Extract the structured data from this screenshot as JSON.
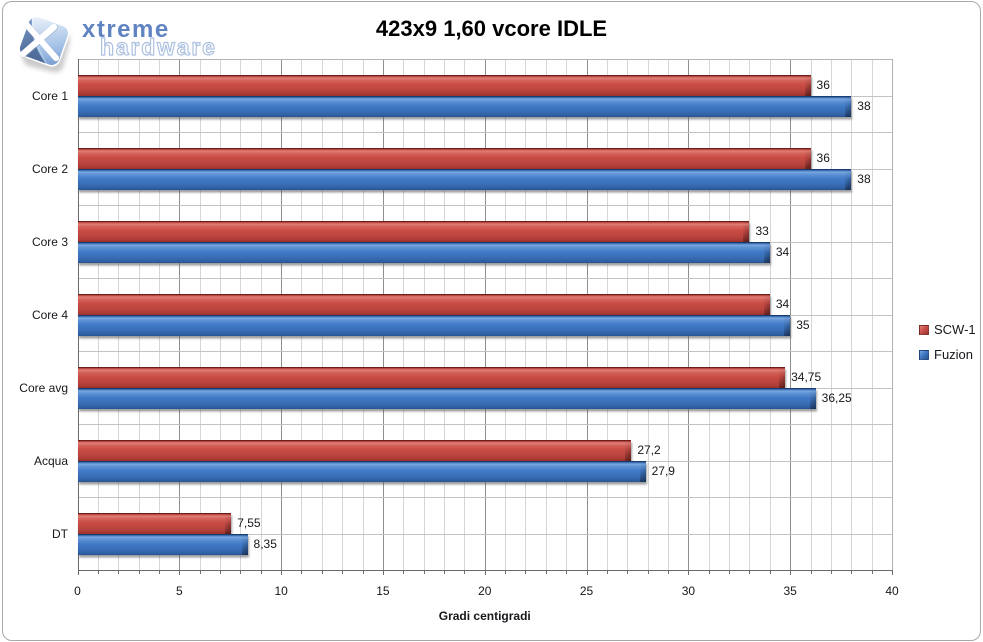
{
  "brand": {
    "line1": "xtreme",
    "line2": "hardware",
    "icon": "x-logo-icon"
  },
  "title": "423x9 1,60 vcore IDLE",
  "chart_data": {
    "type": "bar",
    "orientation": "horizontal",
    "title": "423x9 1,60 vcore IDLE",
    "categories": [
      "Core 1",
      "Core 2",
      "Core 3",
      "Core 4",
      "Core avg",
      "Acqua",
      "DT"
    ],
    "series": [
      {
        "name": "SCW-1",
        "color": "#c0504d",
        "values": [
          36,
          36,
          33,
          34,
          34.75,
          27.2,
          7.55
        ],
        "labels": [
          "36",
          "36",
          "33",
          "34",
          "34,75",
          "27,2",
          "7,55"
        ]
      },
      {
        "name": "Fuzion",
        "color": "#4f81bd",
        "values": [
          38,
          38,
          34,
          35,
          36.25,
          27.9,
          8.35
        ],
        "labels": [
          "38",
          "38",
          "34",
          "35",
          "36,25",
          "27,9",
          "8,35"
        ]
      }
    ],
    "xlabel": "Gradi centigradi",
    "ylabel": "",
    "xlim": [
      0,
      40
    ],
    "x_major_unit": 5,
    "x_minor_unit": 1,
    "x_tick_labels": [
      "0",
      "5",
      "10",
      "15",
      "20",
      "25",
      "30",
      "35",
      "40"
    ],
    "grid": true,
    "legend_position": "right"
  }
}
